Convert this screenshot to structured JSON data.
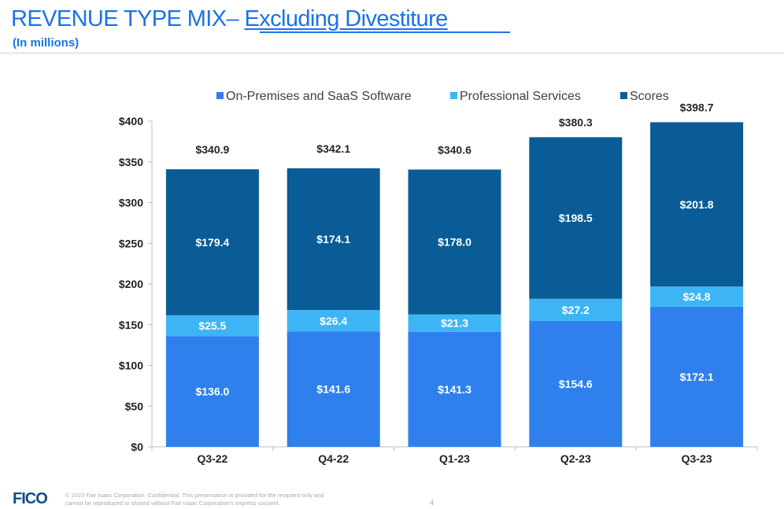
{
  "header": {
    "title_main": "REVENUE TYPE MIX– ",
    "title_link": "Excluding Divestiture",
    "subtitle": "(In millions)"
  },
  "footer": {
    "logo": "FICO",
    "note": "© 2023 Fair Isaac Corporation. Confidential. This presentation is provided for the recipient only and cannot be reproduced or shared without Fair Isaac Corporation's express consent.",
    "page": "4"
  },
  "colors": {
    "title": "#1a73e8",
    "software": "#2f80ed",
    "services": "#3db5f5",
    "scores": "#0a5c96"
  },
  "chart_data": {
    "type": "bar",
    "stacked": true,
    "categories": [
      "Q3-22",
      "Q4-22",
      "Q1-23",
      "Q2-23",
      "Q3-23"
    ],
    "series": [
      {
        "name": "On-Premises and SaaS Software",
        "values": [
          136.0,
          141.6,
          141.3,
          154.6,
          172.1
        ],
        "labels": [
          "$136.0",
          "$141.6",
          "$141.3",
          "$154.6",
          "$172.1"
        ],
        "color": "#2f80ed"
      },
      {
        "name": "Professional Services",
        "values": [
          25.5,
          26.4,
          21.3,
          27.2,
          24.8
        ],
        "labels": [
          "$25.5",
          "$26.4",
          "$21.3",
          "$27.2",
          "$24.8"
        ],
        "color": "#3db5f5"
      },
      {
        "name": "Scores",
        "values": [
          179.4,
          174.1,
          178.0,
          198.5,
          201.8
        ],
        "labels": [
          "$179.4",
          "$174.1",
          "$178.0",
          "$198.5",
          "$201.8"
        ],
        "color": "#0a5c96"
      }
    ],
    "totals": [
      340.9,
      342.1,
      340.6,
      380.3,
      398.7
    ],
    "total_labels": [
      "$340.9",
      "$342.1",
      "$340.6",
      "$380.3",
      "$398.7"
    ],
    "ylim": [
      0,
      400
    ],
    "yticks": [
      0,
      50,
      100,
      150,
      200,
      250,
      300,
      350,
      400
    ],
    "ytick_labels": [
      "$0",
      "$50",
      "$100",
      "$150",
      "$200",
      "$250",
      "$300",
      "$350",
      "$400"
    ],
    "legend_position": "top",
    "grid": false
  }
}
